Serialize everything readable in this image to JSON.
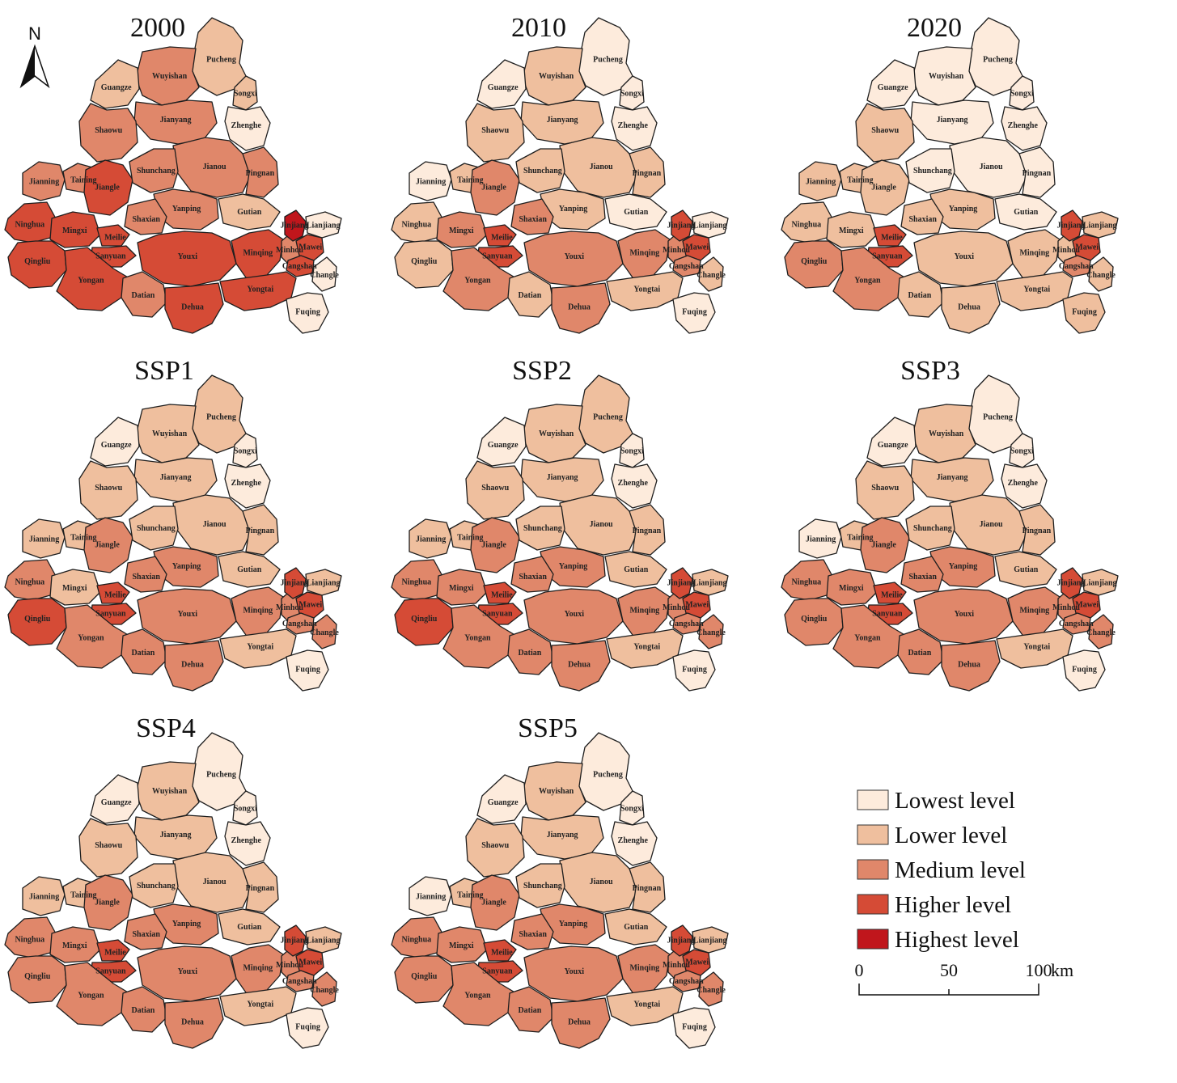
{
  "colors": {
    "1": "#fdebdc",
    "2": "#efbf9e",
    "3": "#e0876a",
    "4": "#d54b36",
    "5": "#c0161c"
  },
  "north_arrow": {
    "label": "N"
  },
  "counties": [
    "Pucheng",
    "Wuyishan",
    "Guangze",
    "Songxi",
    "Jianyang",
    "Zhenghe",
    "Shaowu",
    "Jianou",
    "Jianning",
    "Taining",
    "Jiangle",
    "Shunchang",
    "Pingnan",
    "Yanping",
    "Gutian",
    "Ninghua",
    "Mingxi",
    "Shaxian",
    "Meilie",
    "Sanyuan",
    "Qingliu",
    "Youxi",
    "Minqing",
    "Minhou",
    "Jinjiang",
    "Lianjiang",
    "Mawei",
    "Cangshan",
    "Changle",
    "Yongan",
    "Datian",
    "Yongtai",
    "Dehua",
    "Fuqing"
  ],
  "panels": [
    {
      "title": "2000",
      "levels": {
        "Pucheng": 2,
        "Wuyishan": 3,
        "Guangze": 2,
        "Songxi": 2,
        "Jianyang": 3,
        "Zhenghe": 1,
        "Shaowu": 3,
        "Jianou": 3,
        "Jianning": 3,
        "Taining": 3,
        "Jiangle": 4,
        "Shunchang": 3,
        "Pingnan": 3,
        "Yanping": 3,
        "Gutian": 2,
        "Ninghua": 4,
        "Mingxi": 4,
        "Shaxian": 3,
        "Meilie": 4,
        "Sanyuan": 4,
        "Qingliu": 4,
        "Youxi": 4,
        "Minqing": 4,
        "Minhou": 3,
        "Jinjiang": 5,
        "Lianjiang": 1,
        "Mawei": 4,
        "Cangshan": 4,
        "Changle": 1,
        "Yongan": 4,
        "Datian": 3,
        "Yongtai": 4,
        "Dehua": 4,
        "Fuqing": 1
      }
    },
    {
      "title": "2010",
      "levels": {
        "Pucheng": 1,
        "Wuyishan": 2,
        "Guangze": 1,
        "Songxi": 1,
        "Jianyang": 2,
        "Zhenghe": 1,
        "Shaowu": 2,
        "Jianou": 2,
        "Jianning": 1,
        "Taining": 2,
        "Jiangle": 3,
        "Shunchang": 2,
        "Pingnan": 2,
        "Yanping": 2,
        "Gutian": 1,
        "Ninghua": 2,
        "Mingxi": 3,
        "Shaxian": 3,
        "Meilie": 4,
        "Sanyuan": 4,
        "Qingliu": 2,
        "Youxi": 3,
        "Minqing": 3,
        "Minhou": 3,
        "Jinjiang": 4,
        "Lianjiang": 1,
        "Mawei": 4,
        "Cangshan": 3,
        "Changle": 2,
        "Yongan": 3,
        "Datian": 2,
        "Yongtai": 2,
        "Dehua": 3,
        "Fuqing": 1
      }
    },
    {
      "title": "2020",
      "levels": {
        "Pucheng": 1,
        "Wuyishan": 1,
        "Guangze": 1,
        "Songxi": 1,
        "Jianyang": 1,
        "Zhenghe": 1,
        "Shaowu": 2,
        "Jianou": 1,
        "Jianning": 2,
        "Taining": 2,
        "Jiangle": 2,
        "Shunchang": 1,
        "Pingnan": 1,
        "Yanping": 2,
        "Gutian": 1,
        "Ninghua": 2,
        "Mingxi": 2,
        "Shaxian": 2,
        "Meilie": 4,
        "Sanyuan": 4,
        "Qingliu": 3,
        "Youxi": 2,
        "Minqing": 2,
        "Minhou": 2,
        "Jinjiang": 4,
        "Lianjiang": 2,
        "Mawei": 4,
        "Cangshan": 3,
        "Changle": 2,
        "Yongan": 3,
        "Datian": 2,
        "Yongtai": 2,
        "Dehua": 2,
        "Fuqing": 2
      }
    },
    {
      "title": "SSP1",
      "levels": {
        "Pucheng": 2,
        "Wuyishan": 2,
        "Guangze": 1,
        "Songxi": 1,
        "Jianyang": 2,
        "Zhenghe": 1,
        "Shaowu": 2,
        "Jianou": 2,
        "Jianning": 2,
        "Taining": 2,
        "Jiangle": 3,
        "Shunchang": 2,
        "Pingnan": 2,
        "Yanping": 3,
        "Gutian": 2,
        "Ninghua": 3,
        "Mingxi": 2,
        "Shaxian": 3,
        "Meilie": 4,
        "Sanyuan": 4,
        "Qingliu": 4,
        "Youxi": 3,
        "Minqing": 3,
        "Minhou": 3,
        "Jinjiang": 4,
        "Lianjiang": 2,
        "Mawei": 4,
        "Cangshan": 3,
        "Changle": 3,
        "Yongan": 3,
        "Datian": 3,
        "Yongtai": 2,
        "Dehua": 3,
        "Fuqing": 1
      }
    },
    {
      "title": "SSP2",
      "levels": {
        "Pucheng": 2,
        "Wuyishan": 2,
        "Guangze": 1,
        "Songxi": 1,
        "Jianyang": 2,
        "Zhenghe": 1,
        "Shaowu": 2,
        "Jianou": 2,
        "Jianning": 2,
        "Taining": 2,
        "Jiangle": 3,
        "Shunchang": 2,
        "Pingnan": 2,
        "Yanping": 3,
        "Gutian": 2,
        "Ninghua": 3,
        "Mingxi": 3,
        "Shaxian": 3,
        "Meilie": 4,
        "Sanyuan": 4,
        "Qingliu": 4,
        "Youxi": 3,
        "Minqing": 3,
        "Minhou": 3,
        "Jinjiang": 4,
        "Lianjiang": 2,
        "Mawei": 4,
        "Cangshan": 3,
        "Changle": 3,
        "Yongan": 3,
        "Datian": 3,
        "Yongtai": 2,
        "Dehua": 3,
        "Fuqing": 1
      }
    },
    {
      "title": "SSP3",
      "levels": {
        "Pucheng": 1,
        "Wuyishan": 2,
        "Guangze": 1,
        "Songxi": 1,
        "Jianyang": 2,
        "Zhenghe": 1,
        "Shaowu": 2,
        "Jianou": 2,
        "Jianning": 1,
        "Taining": 2,
        "Jiangle": 3,
        "Shunchang": 2,
        "Pingnan": 2,
        "Yanping": 3,
        "Gutian": 2,
        "Ninghua": 3,
        "Mingxi": 3,
        "Shaxian": 3,
        "Meilie": 4,
        "Sanyuan": 4,
        "Qingliu": 3,
        "Youxi": 3,
        "Minqing": 3,
        "Minhou": 3,
        "Jinjiang": 4,
        "Lianjiang": 2,
        "Mawei": 4,
        "Cangshan": 3,
        "Changle": 3,
        "Yongan": 3,
        "Datian": 3,
        "Yongtai": 2,
        "Dehua": 3,
        "Fuqing": 1
      }
    },
    {
      "title": "SSP4",
      "levels": {
        "Pucheng": 1,
        "Wuyishan": 2,
        "Guangze": 1,
        "Songxi": 1,
        "Jianyang": 2,
        "Zhenghe": 1,
        "Shaowu": 2,
        "Jianou": 2,
        "Jianning": 2,
        "Taining": 2,
        "Jiangle": 3,
        "Shunchang": 2,
        "Pingnan": 2,
        "Yanping": 3,
        "Gutian": 2,
        "Ninghua": 3,
        "Mingxi": 3,
        "Shaxian": 3,
        "Meilie": 4,
        "Sanyuan": 4,
        "Qingliu": 3,
        "Youxi": 3,
        "Minqing": 3,
        "Minhou": 3,
        "Jinjiang": 4,
        "Lianjiang": 2,
        "Mawei": 4,
        "Cangshan": 3,
        "Changle": 3,
        "Yongan": 3,
        "Datian": 3,
        "Yongtai": 2,
        "Dehua": 3,
        "Fuqing": 1
      }
    },
    {
      "title": "SSP5",
      "levels": {
        "Pucheng": 1,
        "Wuyishan": 2,
        "Guangze": 1,
        "Songxi": 1,
        "Jianyang": 2,
        "Zhenghe": 1,
        "Shaowu": 2,
        "Jianou": 2,
        "Jianning": 1,
        "Taining": 2,
        "Jiangle": 3,
        "Shunchang": 2,
        "Pingnan": 2,
        "Yanping": 3,
        "Gutian": 2,
        "Ninghua": 3,
        "Mingxi": 3,
        "Shaxian": 3,
        "Meilie": 4,
        "Sanyuan": 4,
        "Qingliu": 3,
        "Youxi": 3,
        "Minqing": 3,
        "Minhou": 3,
        "Jinjiang": 4,
        "Lianjiang": 2,
        "Mawei": 4,
        "Cangshan": 3,
        "Changle": 3,
        "Yongan": 3,
        "Datian": 3,
        "Yongtai": 2,
        "Dehua": 3,
        "Fuqing": 1
      }
    }
  ],
  "legend": {
    "items": [
      {
        "label": "Lowest level",
        "level": 1
      },
      {
        "label": "Lower level",
        "level": 2
      },
      {
        "label": "Medium level",
        "level": 3
      },
      {
        "label": "Higher level",
        "level": 4
      },
      {
        "label": "Highest level",
        "level": 5
      }
    ]
  },
  "scale_bar": {
    "ticks": [
      "0",
      "50",
      "100"
    ],
    "unit": "km"
  }
}
